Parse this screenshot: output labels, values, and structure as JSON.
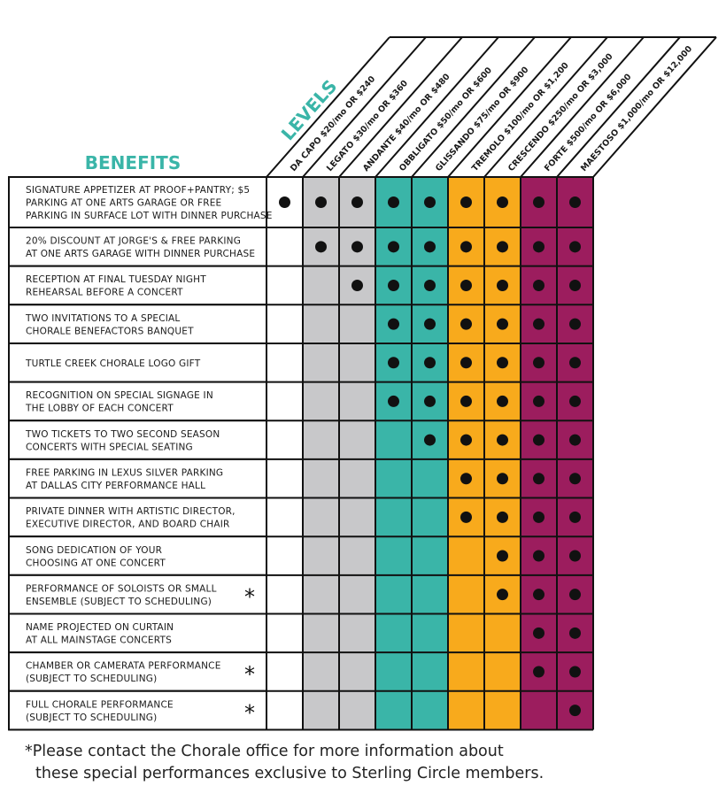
{
  "header": {
    "benefits_title": "BENEFITS",
    "levels_title": "LEVELS"
  },
  "levels": [
    {
      "label": "DA CAPO $20/mo OR $240",
      "color": "#ffffff"
    },
    {
      "label": "LEGATO $30/mo OR $360",
      "color": "#c8c8ca"
    },
    {
      "label": "ANDANTE $40/mo OR $480",
      "color": "#c8c8ca"
    },
    {
      "label": "OBBLIGATO $50/mo OR $600",
      "color": "#3ab5a8"
    },
    {
      "label": "GLISSANDO $75/mo OR $900",
      "color": "#3ab5a8"
    },
    {
      "label": "TREMOLO $100/mo OR $1,200",
      "color": "#f8aa1c"
    },
    {
      "label": "CRESCENDO $250/mo OR $3,000",
      "color": "#f8aa1c"
    },
    {
      "label": "FORTE $500/mo OR $6,000",
      "color": "#9c1d5e"
    },
    {
      "label": "MAESTOSO $1,000/mo OR $12,000",
      "color": "#9c1d5e"
    }
  ],
  "benefits": [
    {
      "lines": [
        "SIGNATURE APPETIZER AT PROOF+PANTRY; $5",
        "PARKING AT ONE ARTS GARAGE OR FREE",
        "PARKING IN SURFACE LOT WITH DINNER PURCHASE"
      ],
      "dots": [
        true,
        true,
        true,
        true,
        true,
        true,
        true,
        true,
        true
      ]
    },
    {
      "lines": [
        "20% DISCOUNT AT JORGE'S & FREE PARKING",
        "AT ONE ARTS GARAGE WITH DINNER PURCHASE"
      ],
      "dots": [
        false,
        true,
        true,
        true,
        true,
        true,
        true,
        true,
        true
      ]
    },
    {
      "lines": [
        "RECEPTION AT FINAL TUESDAY NIGHT",
        "REHEARSAL BEFORE A CONCERT"
      ],
      "dots": [
        false,
        false,
        true,
        true,
        true,
        true,
        true,
        true,
        true
      ]
    },
    {
      "lines": [
        "TWO INVITATIONS TO A SPECIAL",
        "CHORALE BENEFACTORS BANQUET"
      ],
      "dots": [
        false,
        false,
        false,
        true,
        true,
        true,
        true,
        true,
        true
      ]
    },
    {
      "lines": [
        "TURTLE CREEK CHORALE LOGO GIFT"
      ],
      "dots": [
        false,
        false,
        false,
        true,
        true,
        true,
        true,
        true,
        true
      ]
    },
    {
      "lines": [
        "RECOGNITION ON SPECIAL SIGNAGE IN",
        "THE LOBBY OF EACH CONCERT"
      ],
      "dots": [
        false,
        false,
        false,
        true,
        true,
        true,
        true,
        true,
        true
      ]
    },
    {
      "lines": [
        "TWO TICKETS TO TWO SECOND SEASON",
        "CONCERTS WITH SPECIAL SEATING"
      ],
      "dots": [
        false,
        false,
        false,
        false,
        true,
        true,
        true,
        true,
        true
      ]
    },
    {
      "lines": [
        "FREE PARKING IN LEXUS SILVER PARKING",
        "AT DALLAS CITY PERFORMANCE HALL"
      ],
      "dots": [
        false,
        false,
        false,
        false,
        false,
        true,
        true,
        true,
        true
      ]
    },
    {
      "lines": [
        "PRIVATE DINNER WITH ARTISTIC DIRECTOR,",
        "EXECUTIVE DIRECTOR, AND BOARD CHAIR"
      ],
      "dots": [
        false,
        false,
        false,
        false,
        false,
        true,
        true,
        true,
        true
      ]
    },
    {
      "lines": [
        "SONG DEDICATION OF YOUR",
        "CHOOSING AT ONE CONCERT"
      ],
      "dots": [
        false,
        false,
        false,
        false,
        false,
        false,
        true,
        true,
        true
      ]
    },
    {
      "lines": [
        "PERFORMANCE OF SOLOISTS OR SMALL",
        "ENSEMBLE (SUBJECT TO SCHEDULING)"
      ],
      "asterisk": "*",
      "dots": [
        false,
        false,
        false,
        false,
        false,
        false,
        true,
        true,
        true
      ]
    },
    {
      "lines": [
        "NAME PROJECTED ON CURTAIN",
        "AT ALL MAINSTAGE CONCERTS"
      ],
      "dots": [
        false,
        false,
        false,
        false,
        false,
        false,
        false,
        true,
        true
      ]
    },
    {
      "lines": [
        "CHAMBER OR CAMERATA PERFORMANCE",
        "(SUBJECT TO SCHEDULING)"
      ],
      "asterisk": "*",
      "dots": [
        false,
        false,
        false,
        false,
        false,
        false,
        false,
        true,
        true
      ]
    },
    {
      "lines": [
        "FULL CHORALE PERFORMANCE",
        "(SUBJECT TO SCHEDULING)"
      ],
      "asterisk": "*",
      "dots": [
        false,
        false,
        false,
        false,
        false,
        false,
        false,
        false,
        true
      ]
    }
  ],
  "footnote": {
    "lines": [
      "*Please contact the Chorale office for more information about",
      "these special performances exclusive to Sterling Circle members."
    ]
  }
}
